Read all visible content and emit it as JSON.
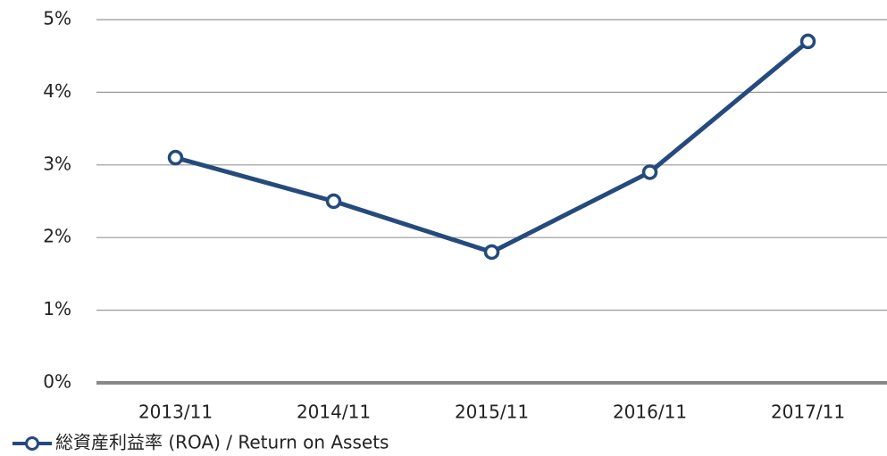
{
  "chart_data": {
    "type": "line",
    "categories": [
      "2013/11",
      "2014/11",
      "2015/11",
      "2016/11",
      "2017/11"
    ],
    "series": [
      {
        "name": "総資産利益率 (ROA) / Return on Assets",
        "color": "#254a7c",
        "values": [
          3.1,
          2.5,
          1.8,
          2.9,
          4.7
        ]
      }
    ],
    "ylim": [
      0,
      5
    ],
    "yticks": [
      {
        "value": 0,
        "label": "0%"
      },
      {
        "value": 1,
        "label": "1%"
      },
      {
        "value": 2,
        "label": "2%"
      },
      {
        "value": 3,
        "label": "3%"
      },
      {
        "value": 4,
        "label": "4%"
      },
      {
        "value": 5,
        "label": "5%"
      }
    ],
    "grid": true,
    "legend": "bottom-left"
  }
}
